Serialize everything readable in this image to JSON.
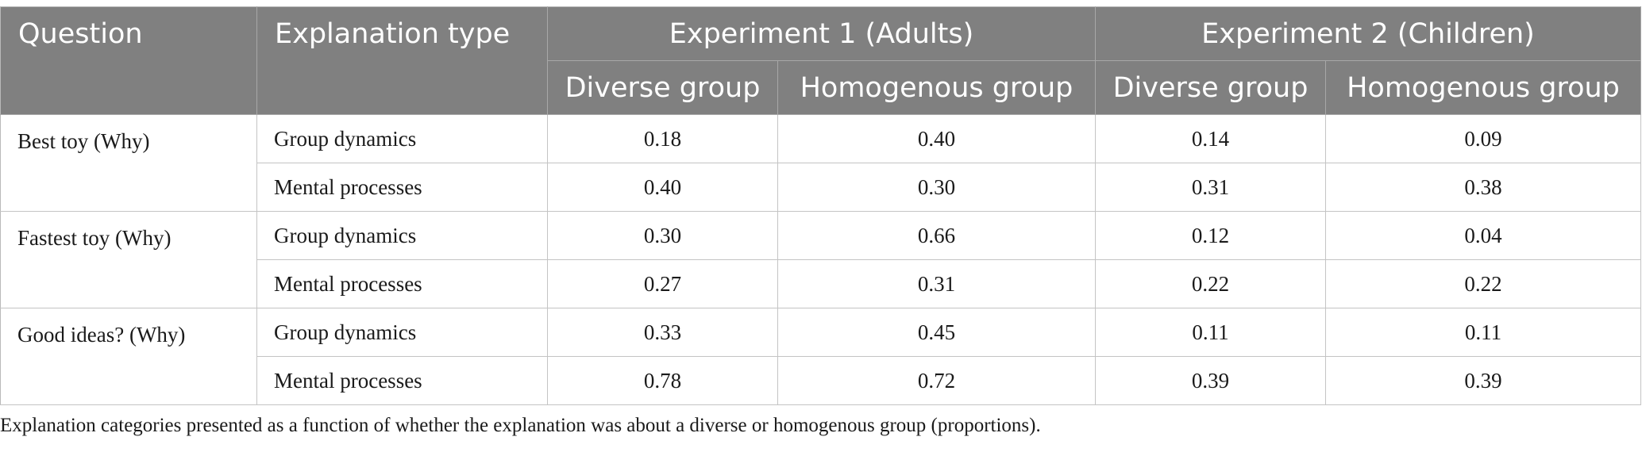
{
  "table": {
    "headers": {
      "question": "Question",
      "explanation_type": "Explanation type",
      "experiment1": "Experiment 1 (Adults)",
      "experiment2": "Experiment 2 (Children)",
      "diverse": "Diverse group",
      "homogenous": "Homogenous group"
    },
    "rows": [
      {
        "question": "Best toy (Why)",
        "type": "Group dynamics",
        "e1_diverse": "0.18",
        "e1_homogenous": "0.40",
        "e2_diverse": "0.14",
        "e2_homogenous": "0.09"
      },
      {
        "question": "",
        "type": "Mental processes",
        "e1_diverse": "0.40",
        "e1_homogenous": "0.30",
        "e2_diverse": "0.31",
        "e2_homogenous": "0.38"
      },
      {
        "question": "Fastest toy (Why)",
        "type": "Group dynamics",
        "e1_diverse": "0.30",
        "e1_homogenous": "0.66",
        "e2_diverse": "0.12",
        "e2_homogenous": "0.04"
      },
      {
        "question": "",
        "type": "Mental processes",
        "e1_diverse": "0.27",
        "e1_homogenous": "0.31",
        "e2_diverse": "0.22",
        "e2_homogenous": "0.22"
      },
      {
        "question": "Good ideas? (Why)",
        "type": "Group dynamics",
        "e1_diverse": "0.33",
        "e1_homogenous": "0.45",
        "e2_diverse": "0.11",
        "e2_homogenous": "0.11"
      },
      {
        "question": "",
        "type": "Mental processes",
        "e1_diverse": "0.78",
        "e1_homogenous": "0.72",
        "e2_diverse": "0.39",
        "e2_homogenous": "0.39"
      }
    ]
  },
  "footnote": "Explanation categories presented as a function of whether the explanation was about a diverse or homogenous group (proportions)."
}
